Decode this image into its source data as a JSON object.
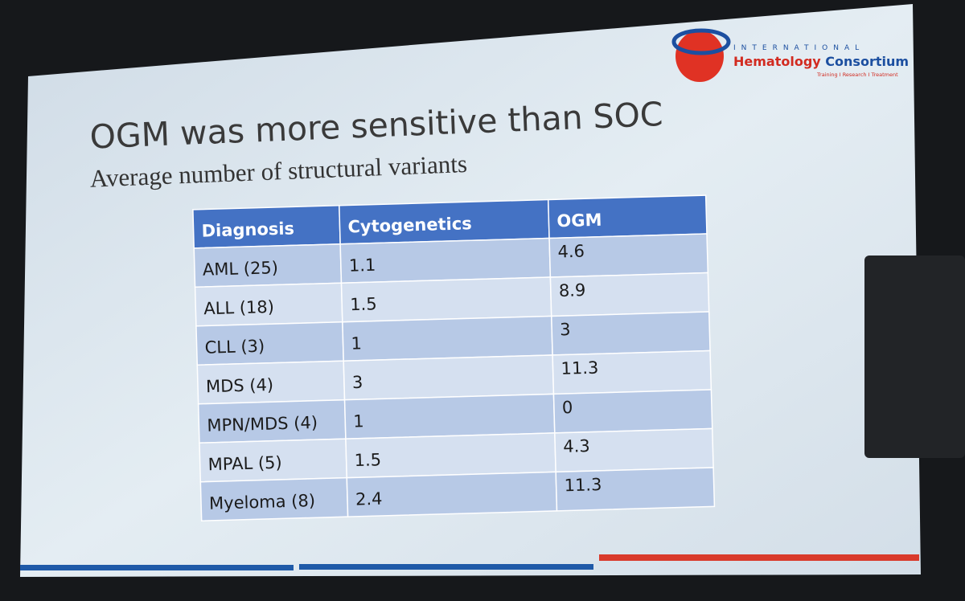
{
  "logo": {
    "line1": "INTERNATIONAL",
    "line2a": "Hematology",
    "line2b": "Consortium",
    "line3": "Training I Research I Treatment"
  },
  "title": "OGM was more sensitive than SOC",
  "subtitle": "Average number of structural variants",
  "table": {
    "header": [
      "Diagnosis",
      "Cytogenetics",
      "OGM"
    ],
    "rows": [
      [
        "AML (25)",
        "1.1",
        "4.6"
      ],
      [
        "ALL (18)",
        "1.5",
        "8.9"
      ],
      [
        "CLL (3)",
        "1",
        "3"
      ],
      [
        "MDS (4)",
        "3",
        "11.3"
      ],
      [
        "MPN/MDS (4)",
        "1",
        "0"
      ],
      [
        "MPAL (5)",
        "1.5",
        "4.3"
      ],
      [
        "Myeloma (8)",
        "2.4",
        "11.3"
      ]
    ]
  }
}
